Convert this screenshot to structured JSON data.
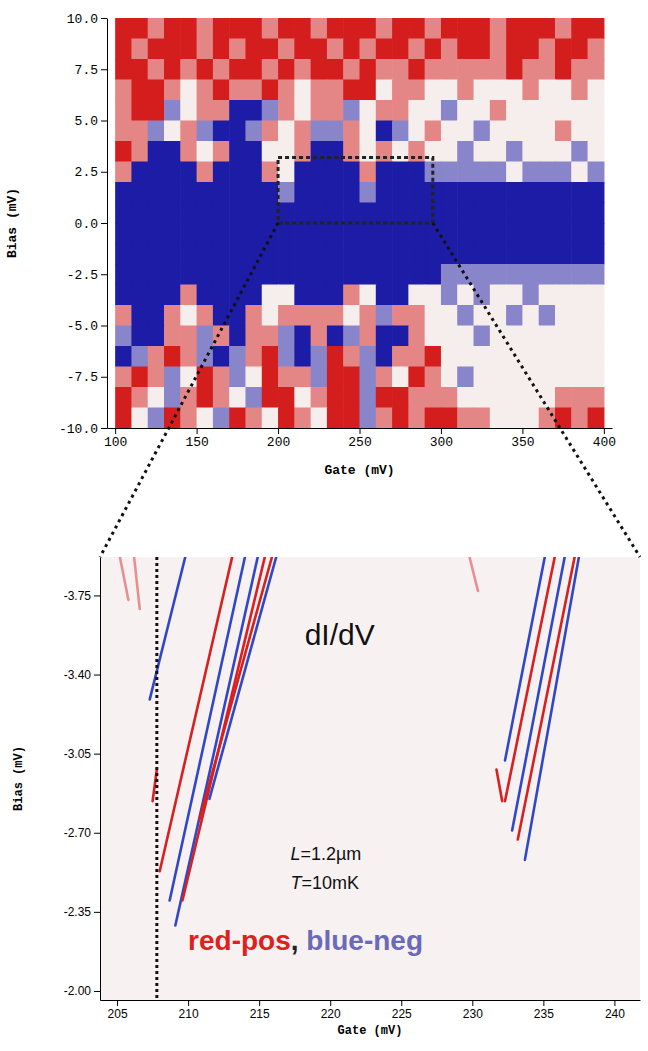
{
  "chart_data": [
    {
      "type": "heatmap",
      "xlabel": "Gate (mV)",
      "ylabel": "Bias (mV)",
      "xlim": [
        95,
        405
      ],
      "ylim": [
        -10,
        10
      ],
      "xticks": [
        100,
        150,
        200,
        250,
        300,
        350,
        400
      ],
      "yticks": [
        {
          "value": -10,
          "label": "-10.0"
        },
        -7.5,
        {
          "value": -5,
          "label": "-5.0"
        },
        -2.5,
        {
          "value": 0,
          "label": "0.0"
        },
        2.5,
        {
          "value": 5,
          "label": "5.0"
        },
        7.5,
        {
          "value": 10,
          "label": "10.0"
        }
      ],
      "zlim": [
        -1,
        1
      ],
      "x": [
        105,
        115,
        125,
        135,
        145,
        155,
        165,
        175,
        185,
        195,
        205,
        215,
        225,
        235,
        245,
        255,
        265,
        275,
        285,
        295,
        305,
        315,
        325,
        335,
        345,
        355,
        365,
        375,
        385,
        395
      ],
      "y": [
        9.5,
        8.5,
        7.5,
        6.5,
        5.5,
        4.5,
        3.5,
        2.5,
        1.5,
        0.5,
        -0.5,
        -1.5,
        -2.5,
        -3.5,
        -4.5,
        -5.5,
        -6.5,
        -7.5,
        -8.5,
        -9.5
      ],
      "cells": [
        [
          1,
          1,
          0.5,
          1,
          1,
          0.5,
          1,
          1,
          1,
          0.5,
          1,
          1,
          0.5,
          1,
          1,
          1,
          0.5,
          1,
          1,
          0.5,
          1,
          1,
          1,
          0.5,
          1,
          1,
          1,
          0.5,
          1,
          1
        ],
        [
          1,
          0.5,
          1,
          1,
          1,
          0.5,
          1,
          0.5,
          1,
          1,
          0.5,
          1,
          1,
          0.5,
          1,
          0.5,
          1,
          1,
          0.5,
          1,
          0.5,
          1,
          1,
          0.5,
          1,
          1,
          0.5,
          1,
          1,
          0.5
        ],
        [
          1,
          1,
          0.5,
          1,
          0.5,
          1,
          0.5,
          1,
          1,
          0.5,
          1,
          0.5,
          1,
          1,
          0.5,
          1,
          0.5,
          0.5,
          1,
          0.5,
          0.5,
          0.5,
          0.5,
          0.5,
          1,
          0.5,
          0.5,
          1,
          0.5,
          0.5
        ],
        [
          0.5,
          1,
          1,
          0.5,
          0,
          0.5,
          1,
          0.5,
          0.5,
          1,
          0.5,
          0,
          0.5,
          0.5,
          1,
          1,
          0,
          0.5,
          0.5,
          0,
          0,
          0.5,
          0,
          0,
          0,
          0.5,
          0,
          0,
          0.5,
          0
        ],
        [
          0.5,
          1,
          1,
          -0.5,
          0,
          0.5,
          0.5,
          -1,
          -1,
          -0.5,
          0.5,
          0,
          0.5,
          0.5,
          -0.5,
          0,
          0.5,
          0.5,
          0,
          0,
          -0.5,
          0,
          0,
          0.5,
          0,
          0,
          0,
          0,
          0,
          0
        ],
        [
          0.5,
          0.5,
          -0.5,
          0,
          0.5,
          -0.5,
          -1,
          -1,
          -0.5,
          0.5,
          0,
          0.5,
          -0.5,
          -0.5,
          0.5,
          0,
          -1,
          -0.5,
          0,
          0.5,
          0,
          0,
          -0.5,
          0,
          0,
          0,
          0,
          0.5,
          0,
          0
        ],
        [
          1,
          0.5,
          -1,
          -1,
          0.5,
          0,
          0.5,
          -1,
          -1,
          0,
          0,
          0.5,
          -1,
          -1,
          0.5,
          0,
          0.5,
          0,
          0.5,
          0,
          0,
          -0.5,
          0,
          0,
          -0.5,
          0,
          0,
          0,
          -0.5,
          0
        ],
        [
          0.5,
          -1,
          -1,
          -1,
          -1,
          0.5,
          -1,
          -1,
          -1,
          0.5,
          0,
          -1,
          -1,
          -1,
          -1,
          0.5,
          -1,
          -1,
          -1,
          -0.5,
          -0.5,
          -0.5,
          -0.5,
          -0.5,
          0,
          -0.5,
          -0.5,
          -0.5,
          0,
          -0.5
        ],
        [
          -1,
          -1,
          -1,
          -1,
          -1,
          -1,
          -1,
          -1,
          -1,
          -1,
          -0.5,
          -1,
          -1,
          -1,
          -1,
          -0.5,
          -1,
          -1,
          -1,
          -1,
          -1,
          -1,
          -1,
          -1,
          -1,
          -1,
          -1,
          -1,
          -1,
          -1
        ],
        [
          -1,
          -1,
          -1,
          -1,
          -1,
          -1,
          -1,
          -1,
          -1,
          -1,
          -1,
          -1,
          -1,
          -1,
          -1,
          -1,
          -1,
          -1,
          -1,
          -1,
          -1,
          -1,
          -1,
          -1,
          -1,
          -1,
          -1,
          -1,
          -1,
          -1
        ],
        [
          -1,
          -1,
          -1,
          -1,
          -1,
          -1,
          -1,
          -1,
          -1,
          -1,
          -1,
          -1,
          -1,
          -1,
          -1,
          -1,
          -1,
          -1,
          -1,
          -1,
          -1,
          -1,
          -1,
          -1,
          -1,
          -1,
          -1,
          -1,
          -1,
          -1
        ],
        [
          -1,
          -1,
          -1,
          -1,
          -1,
          -1,
          -1,
          -1,
          -1,
          -1,
          -1,
          -1,
          -1,
          -1,
          -1,
          -1,
          -1,
          -1,
          -1,
          -1,
          -1,
          -1,
          -1,
          -1,
          -1,
          -1,
          -1,
          -1,
          -1,
          -1
        ],
        [
          -1,
          -1,
          -1,
          -1,
          -1,
          -1,
          -1,
          -1,
          -1,
          -1,
          -1,
          -1,
          -1,
          -1,
          -1,
          -1,
          -1,
          -1,
          -1,
          -1,
          -0.5,
          -0.5,
          -0.5,
          -0.5,
          -0.5,
          -0.5,
          -0.5,
          -0.5,
          -0.5,
          -0.5
        ],
        [
          -1,
          -1,
          -1,
          -1,
          0.5,
          -1,
          -1,
          -1,
          -1,
          0,
          0,
          -1,
          -1,
          -1,
          0.5,
          0,
          -1,
          -1,
          0,
          0,
          -0.5,
          0,
          -0.5,
          0,
          0,
          -0.5,
          0,
          0,
          0,
          0
        ],
        [
          0.5,
          -1,
          -1,
          0.5,
          0,
          0.5,
          -1,
          -1,
          0.5,
          0,
          0.5,
          0.5,
          0.5,
          0.5,
          0,
          0.5,
          -0.5,
          0.5,
          0.5,
          0,
          0,
          -0.5,
          0,
          0,
          -0.5,
          0,
          -0.5,
          0,
          0,
          0
        ],
        [
          -0.5,
          -1,
          -1,
          0.5,
          0.5,
          -0.5,
          0.5,
          -1,
          0.5,
          0.5,
          -0.5,
          -1,
          0.5,
          -1,
          -0.5,
          0.5,
          -1,
          -1,
          0.5,
          0,
          0,
          0,
          -0.5,
          0,
          0,
          0,
          0,
          0,
          0,
          0
        ],
        [
          -1,
          -0.5,
          0.5,
          1,
          0.5,
          -0.5,
          -1,
          -0.5,
          0.5,
          1,
          -0.5,
          -1,
          -0.5,
          1,
          0.5,
          -0.5,
          -1,
          0.5,
          0.5,
          1,
          0,
          0,
          0,
          0,
          0,
          0,
          0,
          0,
          0,
          0
        ],
        [
          0.5,
          1,
          0.5,
          -0.5,
          0,
          1,
          0.5,
          -0.5,
          0,
          1,
          0.5,
          0.5,
          -0.5,
          1,
          1,
          -0.5,
          0.5,
          0,
          1,
          0.5,
          0,
          -0.5,
          0,
          0,
          0,
          0,
          0,
          0,
          0,
          0
        ],
        [
          1,
          0.5,
          0,
          -0.5,
          0.5,
          1,
          0.5,
          0,
          -0.5,
          1,
          1,
          0,
          0.5,
          1,
          1,
          -0.5,
          1,
          1,
          0.5,
          0.5,
          0.5,
          0,
          0,
          0,
          0,
          0,
          0,
          0.5,
          0.5,
          0.5
        ],
        [
          1,
          0,
          -0.5,
          1,
          0.5,
          0,
          -0.5,
          1,
          0.5,
          0,
          1,
          0.5,
          0,
          1,
          1,
          -0.5,
          0.5,
          1,
          0.5,
          1,
          1,
          0.5,
          0.5,
          0,
          0,
          0,
          0.5,
          1,
          0.5,
          1
        ]
      ],
      "zoom_box": {
        "x": [
          200,
          295
        ],
        "y": [
          0,
          3.2
        ]
      }
    },
    {
      "type": "line",
      "xlabel": "Gate (mV)",
      "ylabel": "Bias (mV)",
      "xlim": [
        203.8,
        241.8
      ],
      "ylim": [
        -1.96,
        -3.92
      ],
      "xticks": [
        205,
        210,
        215,
        220,
        225,
        230,
        235,
        240
      ],
      "yticks": [
        {
          "value": -2,
          "label": "-2.00"
        },
        -2.35,
        {
          "value": -2.7,
          "label": "-2.70"
        },
        -3.05,
        {
          "value": -3.4,
          "label": "-3.40"
        },
        -3.75
      ],
      "vline": 207.8,
      "series": [
        {
          "color": "#3048c8",
          "x": [
            207.3,
            209.8
          ],
          "values": [
            -3.29,
            -3.92
          ]
        },
        {
          "color": "#d82020",
          "x": [
            207.5,
            207.8
          ],
          "values": [
            -2.84,
            -2.98
          ]
        },
        {
          "color": "#d82020",
          "x": [
            208.0,
            213.1
          ],
          "values": [
            -2.53,
            -3.92
          ]
        },
        {
          "color": "#3048c8",
          "x": [
            208.7,
            214.0
          ],
          "values": [
            -2.4,
            -3.92
          ]
        },
        {
          "color": "#3048c8",
          "x": [
            209.1,
            214.9
          ],
          "values": [
            -2.29,
            -3.92
          ]
        },
        {
          "color": "#d82020",
          "x": [
            209.6,
            215.4
          ],
          "values": [
            -2.4,
            -3.92
          ]
        },
        {
          "color": "#d82020",
          "x": [
            210.8,
            215.9
          ],
          "values": [
            -2.76,
            -3.92
          ]
        },
        {
          "color": "#3048c8",
          "x": [
            211.5,
            216.2
          ],
          "values": [
            -2.85,
            -3.92
          ]
        },
        {
          "color": "#e89090",
          "x": [
            205.2,
            205.8
          ],
          "values": [
            -3.92,
            -3.73
          ]
        },
        {
          "color": "#e89090",
          "x": [
            206.2,
            206.6
          ],
          "values": [
            -3.92,
            -3.69
          ]
        },
        {
          "color": "#d82020",
          "x": [
            231.7,
            232.1
          ],
          "values": [
            -2.98,
            -2.84
          ]
        },
        {
          "color": "#3048c8",
          "x": [
            232.3,
            235.1
          ],
          "values": [
            -3.02,
            -3.92
          ]
        },
        {
          "color": "#d82020",
          "x": [
            232.3,
            235.8
          ],
          "values": [
            -2.84,
            -3.92
          ]
        },
        {
          "color": "#3048c8",
          "x": [
            232.8,
            236.5
          ],
          "values": [
            -2.71,
            -3.92
          ]
        },
        {
          "color": "#d82020",
          "x": [
            233.2,
            237.2
          ],
          "values": [
            -2.67,
            -3.92
          ]
        },
        {
          "color": "#3048c8",
          "x": [
            233.7,
            237.5
          ],
          "values": [
            -2.58,
            -3.92
          ]
        },
        {
          "color": "#e89090",
          "x": [
            229.8,
            230.4
          ],
          "values": [
            -3.92,
            -3.77
          ]
        }
      ],
      "annotations": [
        {
          "text": "dI/dV",
          "x": 218.2,
          "y": -3.53
        },
        {
          "text": "L=1.2µm",
          "x": 217.2,
          "y": -2.58
        },
        {
          "text": "T=10mK",
          "x": 217.2,
          "y": -2.45
        },
        {
          "parts": [
            {
              "text": "red-pos",
              "color": "#e0201c"
            },
            {
              "text": ", ",
              "color": "#222222"
            },
            {
              "text": "blue-neg",
              "color": "#6a6ab8"
            }
          ],
          "x": 210.0,
          "y": -2.18
        }
      ]
    }
  ]
}
